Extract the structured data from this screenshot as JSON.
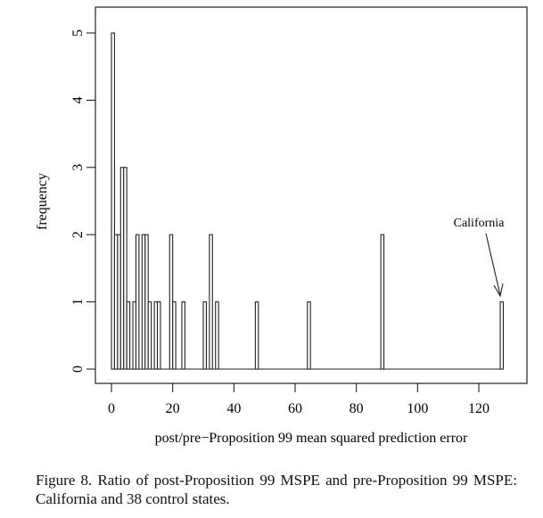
{
  "chart_data": {
    "type": "bar",
    "subtype": "histogram",
    "xlabel": "post/pre−Proposition 99 mean squared prediction error",
    "ylabel": "frequency",
    "xlim": [
      0,
      130
    ],
    "ylim": [
      0,
      5
    ],
    "xticks": [
      0,
      20,
      40,
      60,
      80,
      100,
      120
    ],
    "yticks": [
      0,
      1,
      2,
      3,
      4,
      5
    ],
    "bin_width": 1,
    "bins": [
      {
        "x": 0,
        "count": 5
      },
      {
        "x": 1,
        "count": 2
      },
      {
        "x": 2,
        "count": 2
      },
      {
        "x": 3,
        "count": 3
      },
      {
        "x": 4,
        "count": 3
      },
      {
        "x": 5,
        "count": 1
      },
      {
        "x": 7,
        "count": 1
      },
      {
        "x": 8,
        "count": 2
      },
      {
        "x": 10,
        "count": 2
      },
      {
        "x": 11,
        "count": 2
      },
      {
        "x": 12,
        "count": 1
      },
      {
        "x": 14,
        "count": 1
      },
      {
        "x": 15,
        "count": 1
      },
      {
        "x": 19,
        "count": 2
      },
      {
        "x": 20,
        "count": 1
      },
      {
        "x": 23,
        "count": 1
      },
      {
        "x": 30,
        "count": 1
      },
      {
        "x": 32,
        "count": 2
      },
      {
        "x": 34,
        "count": 1
      },
      {
        "x": 47,
        "count": 1
      },
      {
        "x": 64,
        "count": 1
      },
      {
        "x": 88,
        "count": 2
      },
      {
        "x": 127,
        "count": 1
      }
    ],
    "annotations": [
      {
        "text": "California",
        "points_to_x": 127,
        "points_to_y": 1
      }
    ],
    "grid": false
  },
  "caption": "Figure 8. Ratio of post-Proposition 99 MSPE and pre-Proposition 99 MSPE: California and 38 control states."
}
